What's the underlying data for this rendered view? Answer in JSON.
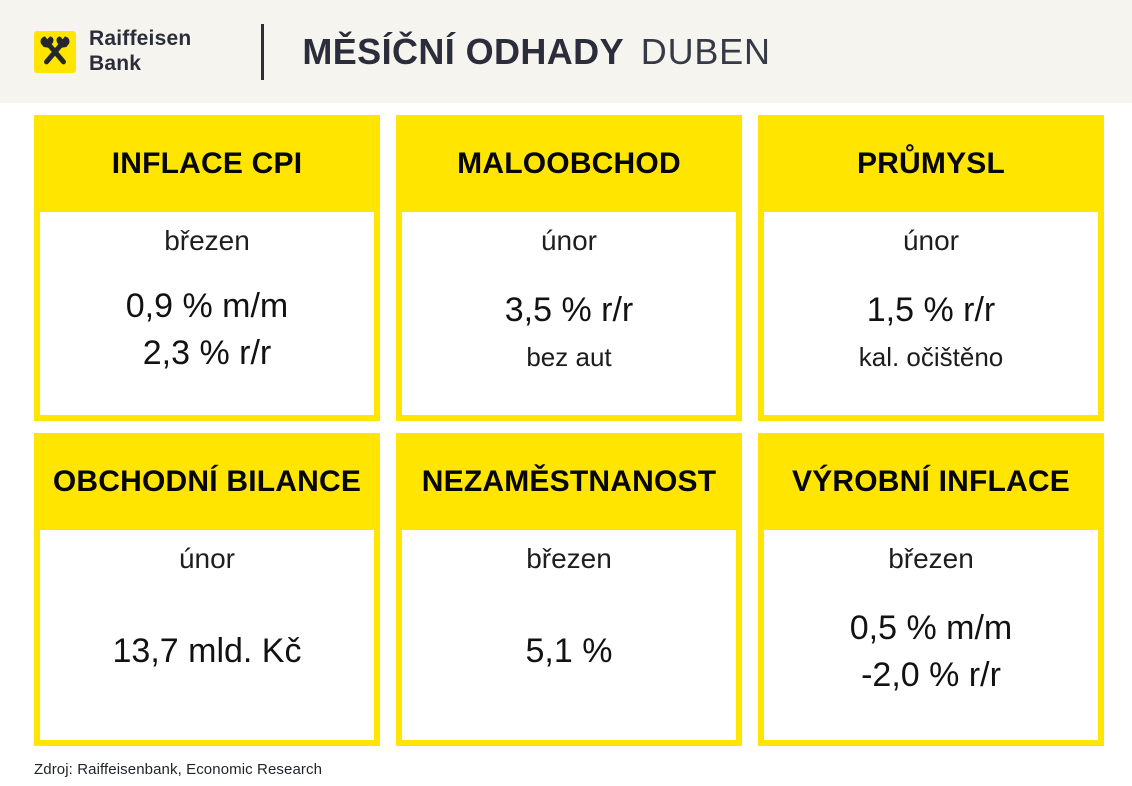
{
  "brand": {
    "name_line1": "Raiffeisen",
    "name_line2": "Bank",
    "logo_icon": "raiffeisen-gable-cross-icon",
    "yellow": "#FFE500",
    "dark": "#2B2E3A"
  },
  "header": {
    "title_bold": "MĚSÍČNÍ ODHADY",
    "title_light": "DUBEN"
  },
  "cards": [
    {
      "title": "INFLACE CPI",
      "month": "březen",
      "values": [
        "0,9 % m/m",
        "2,3 % r/r"
      ],
      "note": ""
    },
    {
      "title": "MALOOBCHOD",
      "month": "únor",
      "values": [
        "3,5 % r/r"
      ],
      "note": "bez aut"
    },
    {
      "title": "PRŮMYSL",
      "month": "únor",
      "values": [
        "1,5 % r/r"
      ],
      "note": "kal. očištěno"
    },
    {
      "title": "OBCHODNÍ BILANCE",
      "month": "únor",
      "values": [
        "13,7 mld. Kč"
      ],
      "note": ""
    },
    {
      "title": "NEZAMĚSTNANOST",
      "month": "březen",
      "values": [
        "5,1 %"
      ],
      "note": ""
    },
    {
      "title": "VÝROBNÍ INFLACE",
      "month": "březen",
      "values": [
        "0,5 % m/m",
        "-2,0 % r/r"
      ],
      "note": ""
    }
  ],
  "footer": {
    "source": "Zdroj: Raiffeisenbank, Economic Research"
  },
  "chart_data": {
    "type": "table",
    "title": "MĚSÍČNÍ ODHADY DUBEN",
    "columns": [
      "indicator",
      "reference_month",
      "estimate",
      "note"
    ],
    "rows": [
      [
        "INFLACE CPI",
        "březen",
        "0,9 % m/m; 2,3 % r/r",
        ""
      ],
      [
        "MALOOBCHOD",
        "únor",
        "3,5 % r/r",
        "bez aut"
      ],
      [
        "PRŮMYSL",
        "únor",
        "1,5 % r/r",
        "kal. očištěno"
      ],
      [
        "OBCHODNÍ BILANCE",
        "únor",
        "13,7 mld. Kč",
        ""
      ],
      [
        "NEZAMĚSTNANOST",
        "březen",
        "5,1 %",
        ""
      ],
      [
        "VÝROBNÍ INFLACE",
        "březen",
        "0,5 % m/m; -2,0 % r/r",
        ""
      ]
    ]
  }
}
